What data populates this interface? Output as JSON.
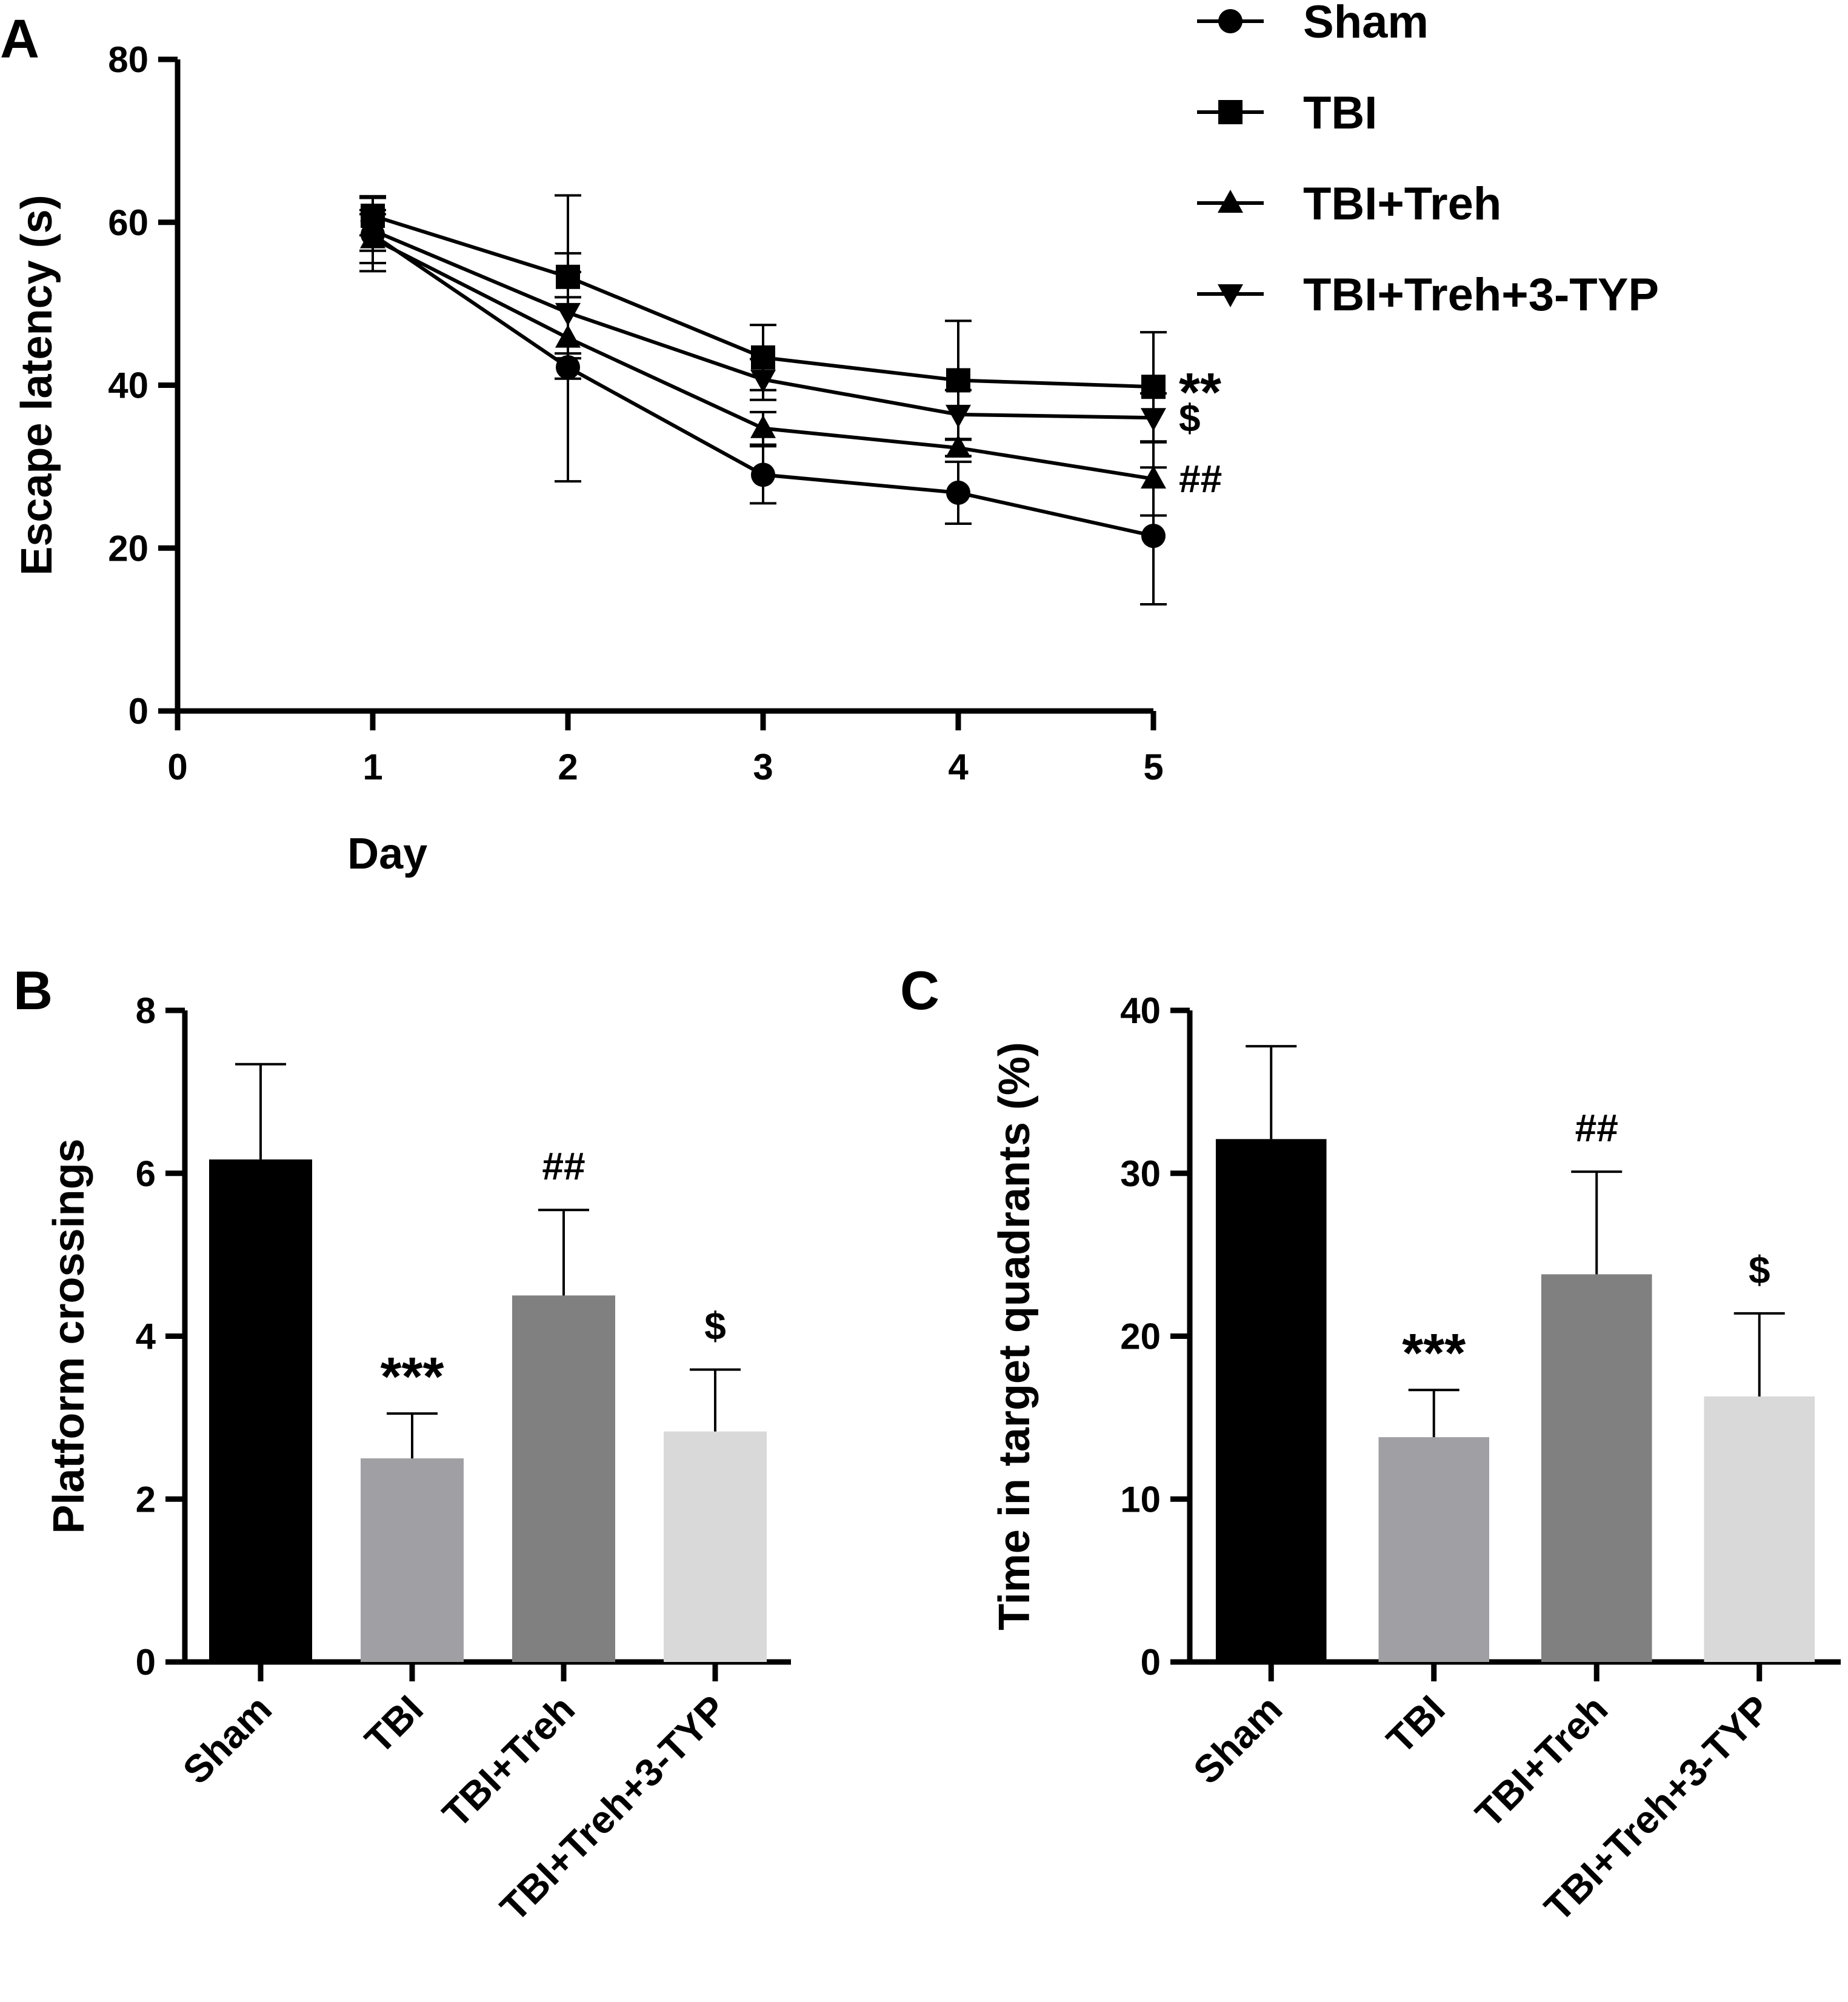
{
  "figure": {
    "panel_labels": [
      "A",
      "B",
      "C"
    ]
  },
  "chart_data": [
    {
      "panel": "A",
      "type": "line",
      "title": "",
      "xlabel": "Day",
      "ylabel": "Escape latency (s)",
      "x": [
        1,
        2,
        3,
        4,
        5
      ],
      "xlim": [
        0,
        5
      ],
      "xticks": [
        "0",
        "1",
        "2",
        "3",
        "4",
        "5"
      ],
      "ylim": [
        0,
        80
      ],
      "yticks": [
        "0",
        "20",
        "40",
        "60",
        "80"
      ],
      "grid": false,
      "legend_position": "top-right",
      "series": [
        {
          "name": "Sham",
          "marker": "circle",
          "values": [
            58.5,
            42.2,
            29.0,
            26.8,
            21.5
          ],
          "errors": [
            4.5,
            14.0,
            3.5,
            3.8,
            8.4
          ],
          "annotation": ""
        },
        {
          "name": "TBI",
          "marker": "square",
          "values": [
            60.8,
            53.3,
            43.4,
            40.6,
            39.8
          ],
          "errors": [
            2.4,
            10.0,
            4.0,
            7.3,
            6.7
          ],
          "annotation": "**"
        },
        {
          "name": "TBI+Treh",
          "marker": "triangle-up",
          "values": [
            58.0,
            45.8,
            34.7,
            32.3,
            28.5
          ],
          "errors": [
            3.0,
            5.0,
            2.0,
            1.0,
            4.5
          ],
          "annotation": "##"
        },
        {
          "name": "TBI+Treh+3-TYP",
          "marker": "triangle-down",
          "values": [
            59.0,
            48.9,
            40.7,
            36.4,
            36.0
          ],
          "errors": [
            2.5,
            5.0,
            2.5,
            3.0,
            3.0
          ],
          "annotation": "$"
        }
      ]
    },
    {
      "panel": "B",
      "type": "bar",
      "title": "",
      "xlabel": "",
      "ylabel": "Platform crossings",
      "categories": [
        "Sham",
        "TBI",
        "TBI+Treh",
        "TBI+Treh+3-TYP"
      ],
      "values": [
        6.17,
        2.5,
        4.5,
        2.83
      ],
      "errors": [
        1.17,
        0.55,
        1.05,
        0.76
      ],
      "annotations": [
        "",
        "***",
        "##",
        "$"
      ],
      "colors": [
        "#000000",
        "#a0a0a4",
        "#808080",
        "#d9d9d9"
      ],
      "ylim": [
        0,
        8
      ],
      "yticks": [
        "0",
        "2",
        "4",
        "6",
        "8"
      ],
      "grid": false
    },
    {
      "panel": "C",
      "type": "bar",
      "title": "",
      "xlabel": "",
      "ylabel": "Time in target quadrants (%)",
      "categories": [
        "Sham",
        "TBI",
        "TBI+Treh",
        "TBI+Treh+3-TYP"
      ],
      "values": [
        32.1,
        13.8,
        23.8,
        16.3
      ],
      "errors": [
        5.7,
        2.9,
        6.3,
        5.1
      ],
      "annotations": [
        "",
        "***",
        "##",
        "$"
      ],
      "colors": [
        "#000000",
        "#a0a0a4",
        "#808080",
        "#d9d9d9"
      ],
      "ylim": [
        0,
        40
      ],
      "yticks": [
        "0",
        "10",
        "20",
        "30",
        "40"
      ],
      "grid": false
    }
  ]
}
